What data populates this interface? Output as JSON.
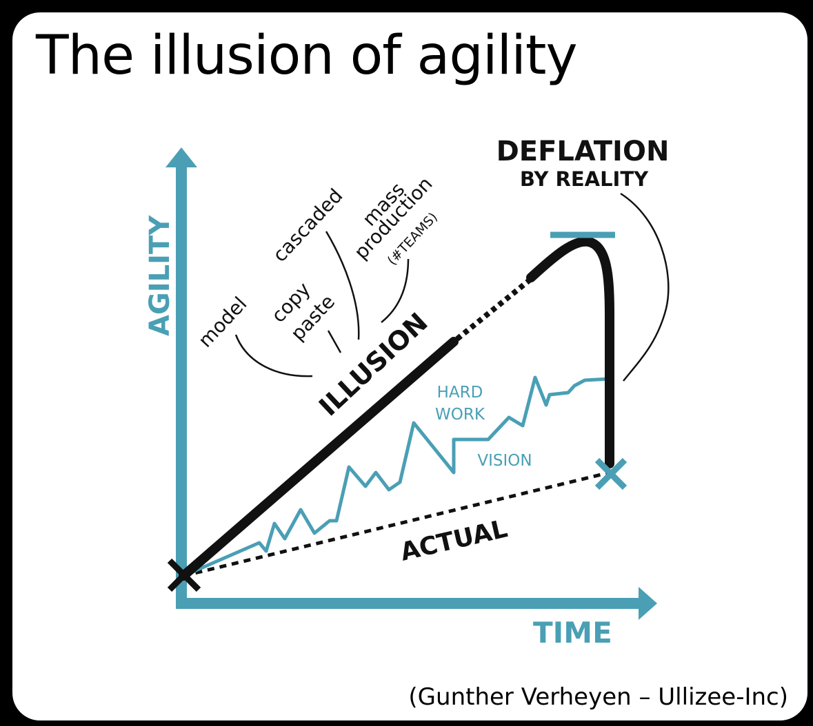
{
  "title": "The illusion of agility",
  "credit": "(Gunther Verheyen – Ullizee-Inc)",
  "colors": {
    "accent": "#4a9fb5",
    "line": "#111111",
    "background": "#ffffff"
  },
  "axes": {
    "y_label": "AGILITY",
    "x_label": "TIME"
  },
  "labels": {
    "model": "model",
    "copy_paste": [
      "copy",
      "paste"
    ],
    "cascaded": "cascaded",
    "mass_production": [
      "mass",
      "production"
    ],
    "teams": "(#TEAMS)",
    "illusion": "ILLUSION",
    "deflation": [
      "DEFLATION",
      "BY REALITY"
    ],
    "hard_work": [
      "HARD",
      "WORK"
    ],
    "vision": "VISION",
    "actual": "ACTUAL"
  }
}
